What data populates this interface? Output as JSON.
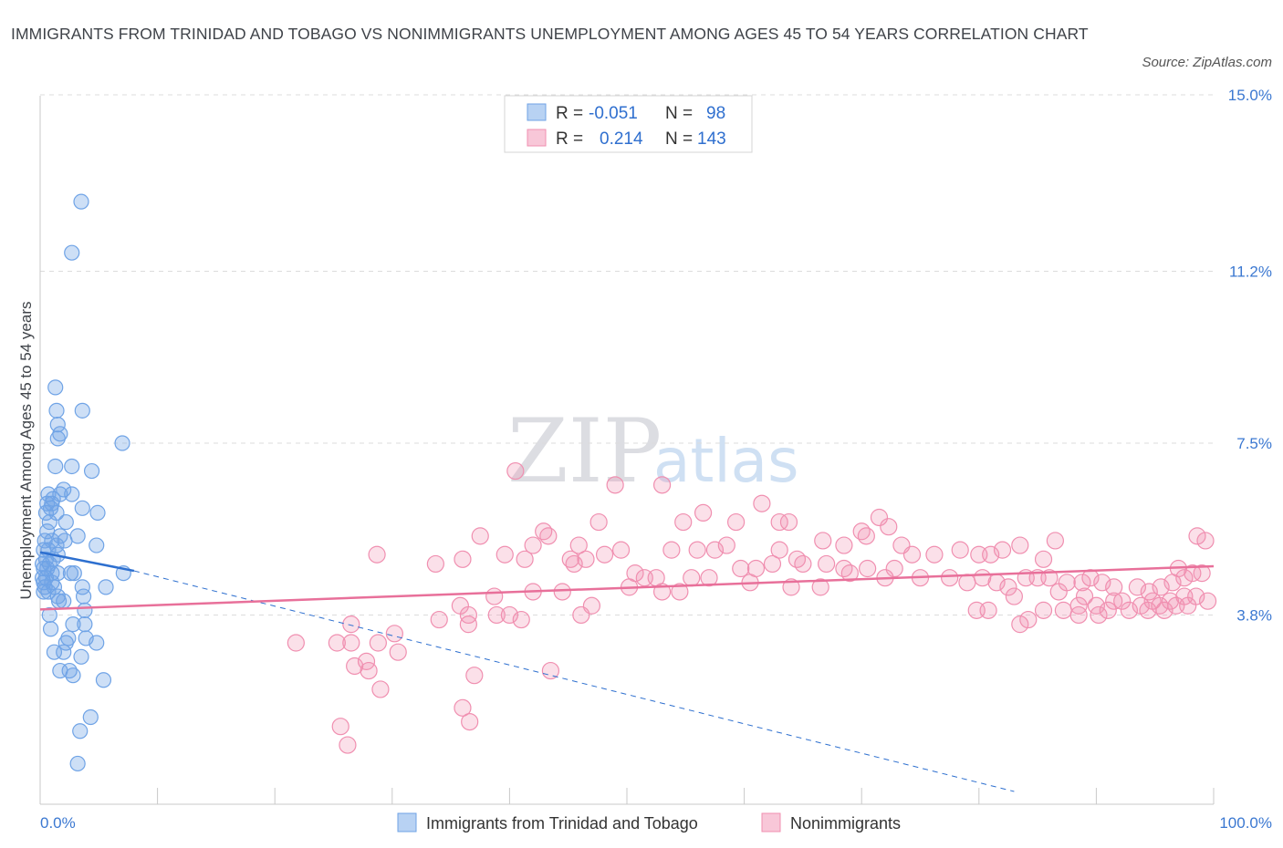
{
  "title": "IMMIGRANTS FROM TRINIDAD AND TOBAGO VS NONIMMIGRANTS UNEMPLOYMENT AMONG AGES 45 TO 54 YEARS CORRELATION CHART",
  "source": "Source: ZipAtlas.com",
  "watermark": {
    "zip": "ZIP",
    "atlas": "atlas"
  },
  "colors": {
    "blue": "#6fa3e6",
    "blue_line": "#2d6fcf",
    "pink": "#f08fb0",
    "pink_line": "#e8709a",
    "axis_text": "#3b78d1",
    "grid": "#dcdcdc"
  },
  "legend": {
    "rows": [
      {
        "r_label": "R =",
        "r_value": "-0.051",
        "n_label": "N =",
        "n_value": "98"
      },
      {
        "r_label": "R =",
        "r_value": "0.214",
        "n_label": "N =",
        "n_value": "143"
      }
    ]
  },
  "bottom_legend": {
    "series1": "Immigrants from Trinidad and Tobago",
    "series2": "Nonimmigrants"
  },
  "chart_data": {
    "type": "scatter",
    "title": "IMMIGRANTS FROM TRINIDAD AND TOBAGO VS NONIMMIGRANTS UNEMPLOYMENT AMONG AGES 45 TO 54 YEARS CORRELATION CHART",
    "xlabel": "",
    "ylabel": "Unemployment Among Ages 45 to 54 years",
    "xlim": [
      0,
      100
    ],
    "ylim": [
      0.0,
      15.0
    ],
    "x_tick_labels": [
      "0.0%",
      "100.0%"
    ],
    "y_ticks": [
      3.8,
      7.5,
      11.2,
      15.0
    ],
    "y_tick_labels": [
      "3.8%",
      "7.5%",
      "11.2%",
      "15.0%"
    ],
    "grid": "horizontal dashed",
    "legend_position": "top-center",
    "series": [
      {
        "name": "Immigrants from Trinidad and Tobago",
        "color": "#6fa3e6",
        "r": -0.051,
        "n": 98,
        "trend": {
          "solid": [
            [
              0,
              5.15
            ],
            [
              8,
              4.75
            ]
          ],
          "dashed": [
            [
              8,
              4.75
            ],
            [
              83,
              0.0
            ]
          ]
        },
        "points": [
          [
            3.5,
            12.7
          ],
          [
            2.7,
            11.6
          ],
          [
            1.3,
            8.7
          ],
          [
            1.4,
            8.2
          ],
          [
            3.6,
            8.2
          ],
          [
            1.5,
            7.9
          ],
          [
            1.7,
            7.7
          ],
          [
            1.5,
            7.6
          ],
          [
            7.0,
            7.5
          ],
          [
            1.3,
            7.0
          ],
          [
            2.7,
            7.0
          ],
          [
            4.4,
            6.9
          ],
          [
            0.7,
            6.4
          ],
          [
            1.7,
            6.4
          ],
          [
            2.0,
            6.5
          ],
          [
            2.7,
            6.4
          ],
          [
            0.6,
            6.2
          ],
          [
            1.1,
            6.3
          ],
          [
            1.0,
            6.2
          ],
          [
            0.9,
            6.1
          ],
          [
            1.4,
            6.0
          ],
          [
            0.5,
            6.0
          ],
          [
            3.6,
            6.1
          ],
          [
            4.9,
            6.0
          ],
          [
            0.8,
            5.8
          ],
          [
            2.2,
            5.8
          ],
          [
            0.6,
            5.6
          ],
          [
            1.7,
            5.5
          ],
          [
            3.2,
            5.5
          ],
          [
            0.4,
            5.4
          ],
          [
            1.0,
            5.4
          ],
          [
            1.4,
            5.3
          ],
          [
            2.1,
            5.4
          ],
          [
            4.8,
            5.3
          ],
          [
            0.3,
            5.2
          ],
          [
            0.7,
            5.2
          ],
          [
            1.5,
            5.1
          ],
          [
            0.5,
            5.0
          ],
          [
            1.1,
            5.0
          ],
          [
            0.2,
            4.9
          ],
          [
            0.8,
            4.9
          ],
          [
            0.3,
            4.8
          ],
          [
            0.6,
            4.8
          ],
          [
            1.0,
            4.7
          ],
          [
            1.5,
            4.7
          ],
          [
            2.6,
            4.7
          ],
          [
            2.9,
            4.7
          ],
          [
            7.1,
            4.7
          ],
          [
            0.2,
            4.6
          ],
          [
            0.5,
            4.6
          ],
          [
            0.3,
            4.5
          ],
          [
            1.0,
            4.5
          ],
          [
            1.2,
            4.4
          ],
          [
            0.4,
            4.4
          ],
          [
            3.6,
            4.4
          ],
          [
            5.6,
            4.4
          ],
          [
            0.3,
            4.3
          ],
          [
            0.7,
            4.3
          ],
          [
            1.5,
            4.2
          ],
          [
            2.0,
            4.1
          ],
          [
            3.7,
            4.2
          ],
          [
            1.6,
            4.1
          ],
          [
            3.8,
            3.9
          ],
          [
            0.8,
            3.8
          ],
          [
            2.8,
            3.6
          ],
          [
            0.9,
            3.5
          ],
          [
            3.8,
            3.6
          ],
          [
            4.8,
            3.2
          ],
          [
            3.9,
            3.3
          ],
          [
            2.4,
            3.3
          ],
          [
            2.2,
            3.2
          ],
          [
            1.2,
            3.0
          ],
          [
            2.0,
            3.0
          ],
          [
            3.5,
            2.9
          ],
          [
            1.7,
            2.6
          ],
          [
            2.5,
            2.6
          ],
          [
            2.8,
            2.5
          ],
          [
            5.4,
            2.4
          ],
          [
            4.3,
            1.6
          ],
          [
            3.4,
            1.3
          ],
          [
            3.2,
            0.6
          ]
        ]
      },
      {
        "name": "Nonimmigrants",
        "color": "#f08fb0",
        "r": 0.214,
        "n": 143,
        "trend": {
          "solid": [
            [
              0,
              3.92
            ],
            [
              100,
              4.85
            ]
          ]
        },
        "points": [
          [
            40.5,
            6.9
          ],
          [
            49.0,
            6.6
          ],
          [
            53.0,
            6.6
          ],
          [
            56.5,
            6.0
          ],
          [
            61.5,
            6.2
          ],
          [
            63.0,
            5.8
          ],
          [
            54.8,
            5.8
          ],
          [
            59.3,
            5.8
          ],
          [
            47.6,
            5.8
          ],
          [
            63.8,
            5.8
          ],
          [
            70.0,
            5.6
          ],
          [
            71.5,
            5.9
          ],
          [
            72.3,
            5.7
          ],
          [
            37.5,
            5.5
          ],
          [
            42.9,
            5.6
          ],
          [
            43.3,
            5.5
          ],
          [
            45.9,
            5.3
          ],
          [
            42.0,
            5.3
          ],
          [
            48.1,
            5.1
          ],
          [
            49.5,
            5.2
          ],
          [
            53.8,
            5.2
          ],
          [
            56.0,
            5.2
          ],
          [
            57.5,
            5.2
          ],
          [
            58.5,
            5.3
          ],
          [
            63.0,
            5.2
          ],
          [
            66.7,
            5.4
          ],
          [
            68.5,
            5.3
          ],
          [
            70.4,
            5.5
          ],
          [
            73.4,
            5.3
          ],
          [
            74.3,
            5.1
          ],
          [
            36.0,
            5.0
          ],
          [
            41.3,
            5.0
          ],
          [
            45.2,
            5.0
          ],
          [
            50.7,
            4.7
          ],
          [
            55.5,
            4.6
          ],
          [
            59.7,
            4.8
          ],
          [
            61.0,
            4.8
          ],
          [
            62.4,
            4.9
          ],
          [
            64.5,
            5.0
          ],
          [
            65.0,
            4.9
          ],
          [
            67.0,
            4.9
          ],
          [
            68.5,
            4.8
          ],
          [
            70.5,
            4.8
          ],
          [
            72.8,
            4.8
          ],
          [
            76.2,
            5.1
          ],
          [
            78.4,
            5.2
          ],
          [
            80.0,
            5.1
          ],
          [
            81.0,
            5.1
          ],
          [
            82.0,
            5.2
          ],
          [
            83.5,
            5.3
          ],
          [
            85.5,
            5.0
          ],
          [
            86.5,
            5.4
          ],
          [
            28.7,
            5.1
          ],
          [
            33.7,
            4.9
          ],
          [
            39.6,
            5.1
          ],
          [
            45.5,
            4.9
          ],
          [
            46.5,
            5.0
          ],
          [
            51.5,
            4.6
          ],
          [
            52.5,
            4.6
          ],
          [
            57.0,
            4.6
          ],
          [
            60.5,
            4.5
          ],
          [
            64.0,
            4.4
          ],
          [
            66.5,
            4.4
          ],
          [
            69.0,
            4.7
          ],
          [
            72.0,
            4.6
          ],
          [
            75.0,
            4.6
          ],
          [
            77.5,
            4.6
          ],
          [
            79.0,
            4.5
          ],
          [
            80.3,
            4.6
          ],
          [
            81.5,
            4.5
          ],
          [
            82.5,
            4.4
          ],
          [
            84.0,
            4.6
          ],
          [
            85.0,
            4.6
          ],
          [
            86.0,
            4.6
          ],
          [
            87.5,
            4.5
          ],
          [
            88.8,
            4.5
          ],
          [
            89.5,
            4.6
          ],
          [
            90.5,
            4.5
          ],
          [
            91.5,
            4.4
          ],
          [
            93.5,
            4.4
          ],
          [
            94.5,
            4.3
          ],
          [
            95.5,
            4.4
          ],
          [
            96.5,
            4.5
          ],
          [
            97.5,
            4.6
          ],
          [
            98.2,
            4.7
          ],
          [
            99.0,
            4.7
          ],
          [
            97.0,
            4.8
          ],
          [
            99.3,
            5.4
          ],
          [
            98.6,
            5.5
          ],
          [
            50.2,
            4.4
          ],
          [
            53.0,
            4.3
          ],
          [
            54.5,
            4.3
          ],
          [
            47.0,
            4.0
          ],
          [
            44.5,
            4.3
          ],
          [
            42.0,
            4.3
          ],
          [
            46.1,
            3.8
          ],
          [
            38.7,
            4.2
          ],
          [
            35.8,
            4.0
          ],
          [
            40.0,
            3.8
          ],
          [
            36.5,
            3.8
          ],
          [
            41.0,
            3.7
          ],
          [
            38.9,
            3.8
          ],
          [
            34.0,
            3.7
          ],
          [
            36.5,
            3.6
          ],
          [
            83.0,
            4.2
          ],
          [
            86.8,
            4.3
          ],
          [
            88.5,
            4.0
          ],
          [
            89.0,
            4.2
          ],
          [
            90.0,
            4.0
          ],
          [
            91.0,
            3.9
          ],
          [
            92.2,
            4.1
          ],
          [
            92.8,
            3.9
          ],
          [
            93.8,
            4.0
          ],
          [
            94.8,
            4.1
          ],
          [
            95.8,
            3.9
          ],
          [
            96.3,
            4.1
          ],
          [
            97.5,
            4.2
          ],
          [
            26.5,
            3.6
          ],
          [
            30.2,
            3.4
          ],
          [
            21.8,
            3.2
          ],
          [
            25.3,
            3.2
          ],
          [
            26.5,
            3.2
          ],
          [
            28.8,
            3.2
          ],
          [
            30.5,
            3.0
          ],
          [
            27.8,
            2.8
          ],
          [
            26.8,
            2.7
          ],
          [
            28.0,
            2.6
          ],
          [
            37.0,
            2.5
          ],
          [
            43.5,
            2.6
          ],
          [
            29.0,
            2.2
          ],
          [
            36.0,
            1.8
          ],
          [
            36.6,
            1.5
          ],
          [
            25.6,
            1.4
          ],
          [
            26.2,
            1.0
          ],
          [
            79.8,
            3.9
          ],
          [
            80.8,
            3.9
          ],
          [
            84.2,
            3.7
          ],
          [
            85.5,
            3.9
          ],
          [
            87.2,
            3.9
          ],
          [
            88.5,
            3.8
          ],
          [
            90.2,
            3.8
          ],
          [
            91.5,
            4.1
          ],
          [
            83.5,
            3.6
          ],
          [
            94.4,
            3.9
          ],
          [
            95.4,
            4.0
          ],
          [
            96.8,
            4.0
          ],
          [
            97.8,
            4.0
          ],
          [
            98.5,
            4.2
          ],
          [
            99.5,
            4.1
          ]
        ]
      }
    ]
  }
}
